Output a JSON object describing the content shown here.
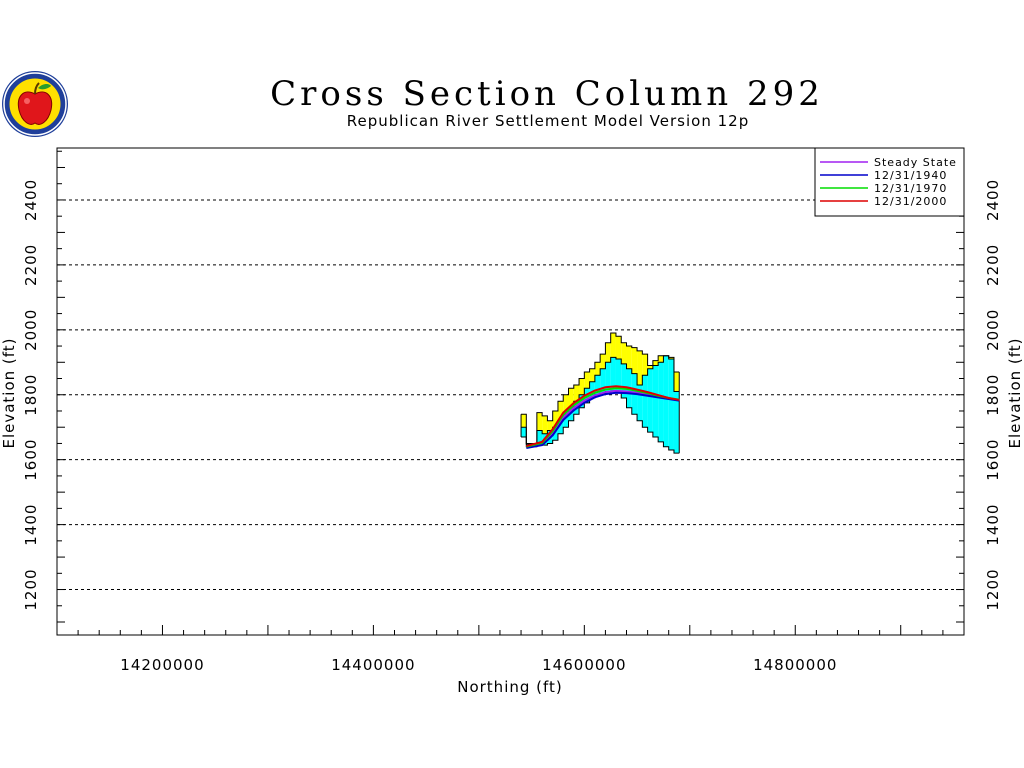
{
  "chart_data": {
    "type": "line",
    "title": "Cross Section Column 292",
    "subtitle": "Republican River Settlement Model Version 12p",
    "xlabel": "Northing (ft)",
    "ylabel": "Elevation (ft)",
    "ylabel_right": "Elevation (ft)",
    "xlim": [
      14100000,
      14960000
    ],
    "ylim": [
      1060,
      2560
    ],
    "x_ticks": [
      14200000,
      14400000,
      14600000,
      14800000
    ],
    "y_ticks": [
      1200,
      1400,
      1600,
      1800,
      2000,
      2200,
      2400
    ],
    "grid": "horizontal dashed",
    "legend_position": "top-right",
    "colors": {
      "steady_state": "#a020f0",
      "y1940": "#0000cc",
      "y1970": "#00dd00",
      "y2000": "#dd0000",
      "upper_fill": "#ffff00",
      "lower_fill": "#00ffff",
      "outline": "#000000"
    },
    "series": [
      {
        "name": "Steady State",
        "color": "#a020f0",
        "x": [
          14545000,
          14560000,
          14570000,
          14580000,
          14590000,
          14600000,
          14610000,
          14620000,
          14630000,
          14640000,
          14650000,
          14660000,
          14670000,
          14680000,
          14690000
        ],
        "y": [
          1638,
          1648,
          1680,
          1730,
          1760,
          1782,
          1798,
          1808,
          1812,
          1810,
          1806,
          1800,
          1794,
          1788,
          1784
        ]
      },
      {
        "name": "12/31/1940",
        "color": "#0000cc",
        "x": [
          14545000,
          14560000,
          14570000,
          14580000,
          14590000,
          14600000,
          14610000,
          14620000,
          14630000,
          14640000,
          14650000,
          14660000,
          14670000,
          14680000,
          14690000
        ],
        "y": [
          1636,
          1645,
          1675,
          1722,
          1752,
          1775,
          1792,
          1802,
          1806,
          1805,
          1802,
          1797,
          1792,
          1787,
          1782
        ]
      },
      {
        "name": "12/31/1970",
        "color": "#00dd00",
        "x": [
          14545000,
          14560000,
          14570000,
          14580000,
          14590000,
          14600000,
          14610000,
          14620000,
          14630000,
          14640000,
          14650000,
          14660000,
          14670000,
          14680000,
          14690000
        ],
        "y": [
          1640,
          1652,
          1688,
          1738,
          1768,
          1790,
          1806,
          1816,
          1820,
          1818,
          1812,
          1805,
          1797,
          1790,
          1785
        ]
      },
      {
        "name": "12/31/2000",
        "color": "#dd0000",
        "x": [
          14545000,
          14560000,
          14570000,
          14580000,
          14590000,
          14600000,
          14610000,
          14620000,
          14630000,
          14640000,
          14650000,
          14660000,
          14670000,
          14680000,
          14690000
        ],
        "y": [
          1642,
          1655,
          1694,
          1745,
          1775,
          1797,
          1813,
          1823,
          1826,
          1823,
          1816,
          1808,
          1799,
          1790,
          1784
        ]
      }
    ],
    "layers": {
      "x_edges": [
        14540000,
        14545000,
        14550000,
        14555000,
        14560000,
        14565000,
        14570000,
        14575000,
        14580000,
        14585000,
        14590000,
        14595000,
        14600000,
        14605000,
        14610000,
        14615000,
        14620000,
        14625000,
        14630000,
        14635000,
        14640000,
        14645000,
        14650000,
        14655000,
        14660000,
        14665000,
        14670000,
        14675000,
        14680000,
        14685000,
        14690000
      ],
      "top": [
        1740,
        1650,
        1650,
        1745,
        1735,
        1720,
        1750,
        1780,
        1800,
        1820,
        1830,
        1850,
        1870,
        1880,
        1900,
        1925,
        1960,
        1990,
        1980,
        1960,
        1950,
        1945,
        1935,
        1925,
        1890,
        1905,
        1920,
        1920,
        1915,
        1870
      ],
      "mid": [
        1700,
        1648,
        1648,
        1690,
        1680,
        1690,
        1700,
        1720,
        1740,
        1760,
        1780,
        1800,
        1820,
        1840,
        1860,
        1880,
        1900,
        1915,
        1910,
        1895,
        1880,
        1865,
        1830,
        1860,
        1880,
        1890,
        1900,
        1920,
        1910,
        1810
      ],
      "bottom": [
        1670,
        1640,
        1640,
        1650,
        1645,
        1650,
        1660,
        1680,
        1700,
        1720,
        1740,
        1760,
        1775,
        1790,
        1800,
        1805,
        1810,
        1812,
        1808,
        1790,
        1760,
        1740,
        1720,
        1700,
        1685,
        1670,
        1655,
        1640,
        1630,
        1620
      ]
    }
  }
}
